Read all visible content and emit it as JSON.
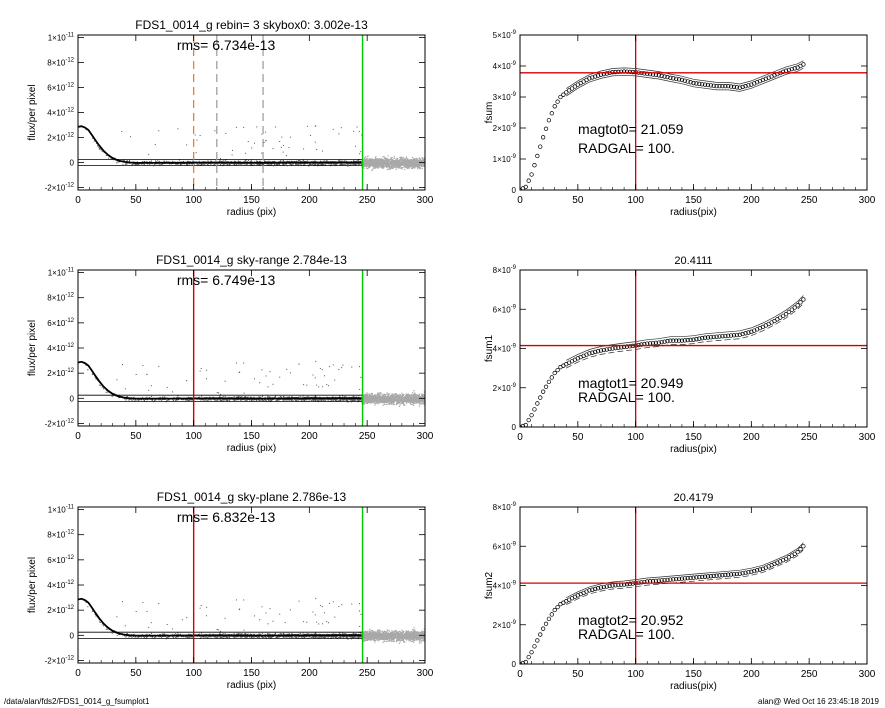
{
  "footer": {
    "left": "/data/alan/fds2/FDS1_0014_g_fsumplot1",
    "right": "alan@  Wed Oct 16 23:45:18 2019"
  },
  "colors": {
    "axis": "#000000",
    "data_points": "#555555",
    "noise_points": "#a8a8a8",
    "green_line": "#00c800",
    "red_line": "#d40000",
    "orange_line": "#f07800",
    "gray_dashed": "#999999"
  },
  "chart_data": [
    {
      "type": "scatter",
      "title": "FDS1_0014_g rebin= 3    skybox0:  3.002e-13",
      "annotation": "rms= 6.734e-13",
      "xlabel": "radius (pix)",
      "ylabel": "flux/per pixel",
      "xlim": [
        0,
        300
      ],
      "ylim": [
        -2.2e-12,
        1.02e-11
      ],
      "xticks": [
        0,
        50,
        100,
        150,
        200,
        250,
        300
      ],
      "yticks": [
        {
          "v": 1e-11,
          "m": "1×10",
          "e": "-11"
        },
        {
          "v": 8e-12,
          "m": "8×10",
          "e": "-12"
        },
        {
          "v": 6e-12,
          "m": "6×10",
          "e": "-12"
        },
        {
          "v": 4e-12,
          "m": "4×10",
          "e": "-12"
        },
        {
          "v": 2e-12,
          "m": "2×10",
          "e": "-12"
        },
        {
          "v": 0,
          "m": "0",
          "e": ""
        },
        {
          "v": -2e-12,
          "m": "-2×10",
          "e": "-12"
        }
      ],
      "vlines": [
        {
          "x": 100,
          "color": "orange",
          "dash": true
        },
        {
          "x": 120,
          "color": "gray",
          "dash": true
        },
        {
          "x": 160,
          "color": "gray",
          "dash": true
        },
        {
          "x": 246,
          "color": "green",
          "dash": false
        }
      ],
      "hlines": [
        2.5e-13,
        -2.5e-13
      ],
      "profile": {
        "x": [
          0,
          3,
          6,
          9,
          12,
          15,
          18,
          22,
          26,
          30,
          35,
          40,
          45,
          50,
          60,
          80,
          120,
          160,
          200,
          245
        ],
        "y": [
          2.85e-12,
          2.9e-12,
          2.8e-12,
          2.6e-12,
          2.2e-12,
          1.8e-12,
          1.4e-12,
          9.5e-13,
          6e-13,
          3.5e-13,
          1.5e-13,
          5e-14,
          0,
          -2e-14,
          -3e-14,
          -2e-14,
          0,
          -2e-14,
          0,
          1e-14
        ]
      }
    },
    {
      "type": "scatter",
      "title": "FDS1_0014_g sky-range  2.784e-13",
      "annotation": "rms= 6.749e-13",
      "xlabel": "radius (pix)",
      "ylabel": "flux/per pixel",
      "xlim": [
        0,
        300
      ],
      "ylim": [
        -2.2e-12,
        1.02e-11
      ],
      "xticks": [
        0,
        50,
        100,
        150,
        200,
        250,
        300
      ],
      "yticks": [
        {
          "v": 1e-11,
          "m": "1×10",
          "e": "-11"
        },
        {
          "v": 8e-12,
          "m": "8×10",
          "e": "-12"
        },
        {
          "v": 6e-12,
          "m": "6×10",
          "e": "-12"
        },
        {
          "v": 4e-12,
          "m": "4×10",
          "e": "-12"
        },
        {
          "v": 2e-12,
          "m": "2×10",
          "e": "-12"
        },
        {
          "v": 0,
          "m": "0",
          "e": ""
        },
        {
          "v": -2e-12,
          "m": "-2×10",
          "e": "-12"
        }
      ],
      "vlines": [
        {
          "x": 100,
          "color": "red",
          "dash": false
        },
        {
          "x": 246,
          "color": "green",
          "dash": false
        }
      ],
      "hlines": [
        2.5e-13,
        -2.5e-13
      ],
      "profile": {
        "x": [
          0,
          3,
          6,
          9,
          12,
          15,
          18,
          22,
          26,
          30,
          35,
          40,
          45,
          50,
          60,
          80,
          120,
          160,
          200,
          245
        ],
        "y": [
          2.85e-12,
          2.9e-12,
          2.8e-12,
          2.6e-12,
          2.2e-12,
          1.8e-12,
          1.4e-12,
          9.5e-13,
          6e-13,
          3.5e-13,
          1.5e-13,
          5e-14,
          0,
          -2e-14,
          -3e-14,
          -2e-14,
          0,
          -2e-14,
          0,
          1e-14
        ]
      }
    },
    {
      "type": "scatter",
      "title": "FDS1_0014_g sky-plane  2.786e-13",
      "annotation": "rms= 6.832e-13",
      "xlabel": "radius (pix)",
      "ylabel": "flux/per pixel",
      "xlim": [
        0,
        300
      ],
      "ylim": [
        -2.2e-12,
        1.02e-11
      ],
      "xticks": [
        0,
        50,
        100,
        150,
        200,
        250,
        300
      ],
      "yticks": [
        {
          "v": 1e-11,
          "m": "1×10",
          "e": "-11"
        },
        {
          "v": 8e-12,
          "m": "8×10",
          "e": "-12"
        },
        {
          "v": 6e-12,
          "m": "6×10",
          "e": "-12"
        },
        {
          "v": 4e-12,
          "m": "4×10",
          "e": "-12"
        },
        {
          "v": 2e-12,
          "m": "2×10",
          "e": "-12"
        },
        {
          "v": 0,
          "m": "0",
          "e": ""
        },
        {
          "v": -2e-12,
          "m": "-2×10",
          "e": "-12"
        }
      ],
      "vlines": [
        {
          "x": 100,
          "color": "red",
          "dash": false
        },
        {
          "x": 246,
          "color": "green",
          "dash": false
        }
      ],
      "hlines": [
        2.5e-13,
        -2.5e-13
      ],
      "profile": {
        "x": [
          0,
          3,
          6,
          9,
          12,
          15,
          18,
          22,
          26,
          30,
          35,
          40,
          45,
          50,
          60,
          80,
          120,
          160,
          200,
          245
        ],
        "y": [
          2.85e-12,
          2.9e-12,
          2.8e-12,
          2.6e-12,
          2.2e-12,
          1.8e-12,
          1.4e-12,
          9.5e-13,
          6e-13,
          3.5e-13,
          1.5e-13,
          5e-14,
          0,
          -2e-14,
          -3e-14,
          -2e-14,
          0,
          -2e-14,
          0,
          1e-14
        ]
      }
    },
    {
      "type": "line",
      "title": "",
      "xlabel": "radius(pix)",
      "ylabel": "fsum",
      "xlim": [
        0,
        300
      ],
      "ylim": [
        0,
        5e-09
      ],
      "xticks": [
        0,
        50,
        100,
        150,
        200,
        250,
        300
      ],
      "yticks": [
        {
          "v": 0,
          "m": "0",
          "e": ""
        },
        {
          "v": 1e-09,
          "m": "1×10",
          "e": "-9"
        },
        {
          "v": 2e-09,
          "m": "2×10",
          "e": "-9"
        },
        {
          "v": 3e-09,
          "m": "3×10",
          "e": "-9"
        },
        {
          "v": 4e-09,
          "m": "4×10",
          "e": "-9"
        },
        {
          "v": 5e-09,
          "m": "5×10",
          "e": "-9"
        }
      ],
      "annotations": [
        "magtot0=  21.059",
        "RADGAL=    100."
      ],
      "hline": 3.78e-09,
      "vline": 100,
      "series": [
        {
          "x": [
            0,
            5,
            10,
            15,
            20,
            25,
            30,
            35,
            40,
            50,
            60,
            70,
            80,
            90,
            100,
            110,
            120,
            130,
            140,
            150,
            160,
            170,
            180,
            190,
            200,
            210,
            220,
            230,
            240,
            245
          ],
          "y": [
            0,
            1e-10,
            5e-10,
            1.1e-09,
            1.7e-09,
            2.25e-09,
            2.7e-09,
            3e-09,
            3.15e-09,
            3.4e-09,
            3.6e-09,
            3.72e-09,
            3.8e-09,
            3.82e-09,
            3.8e-09,
            3.75e-09,
            3.7e-09,
            3.62e-09,
            3.55e-09,
            3.45e-09,
            3.4e-09,
            3.35e-09,
            3.35e-09,
            3.3e-09,
            3.4e-09,
            3.55e-09,
            3.7e-09,
            3.85e-09,
            3.95e-09,
            4.05e-09
          ]
        }
      ],
      "envelope": 1.2e-10
    },
    {
      "type": "line",
      "title": "20.4111",
      "xlabel": "radius(pix)",
      "ylabel": "fsum1",
      "xlim": [
        0,
        300
      ],
      "ylim": [
        0,
        8e-09
      ],
      "xticks": [
        0,
        50,
        100,
        150,
        200,
        250,
        300
      ],
      "yticks": [
        {
          "v": 0,
          "m": "0",
          "e": ""
        },
        {
          "v": 2e-09,
          "m": "2×10",
          "e": "-9"
        },
        {
          "v": 4e-09,
          "m": "4×10",
          "e": "-9"
        },
        {
          "v": 6e-09,
          "m": "6×10",
          "e": "-9"
        },
        {
          "v": 8e-09,
          "m": "8×10",
          "e": "-9"
        }
      ],
      "annotations": [
        "magtot1=  20.949",
        "RADGAL=    100."
      ],
      "hline": 4.15e-09,
      "vline": 100,
      "series": [
        {
          "x": [
            0,
            5,
            10,
            15,
            20,
            25,
            30,
            35,
            40,
            50,
            60,
            70,
            80,
            90,
            100,
            110,
            120,
            130,
            140,
            150,
            160,
            170,
            180,
            190,
            200,
            210,
            220,
            230,
            240,
            245
          ],
          "y": [
            0,
            1e-10,
            6e-10,
            1.2e-09,
            1.8e-09,
            2.3e-09,
            2.75e-09,
            3.05e-09,
            3.2e-09,
            3.5e-09,
            3.75e-09,
            3.9e-09,
            4e-09,
            4.08e-09,
            4.15e-09,
            4.25e-09,
            4.3e-09,
            4.4e-09,
            4.4e-09,
            4.45e-09,
            4.55e-09,
            4.6e-09,
            4.65e-09,
            4.7e-09,
            4.85e-09,
            5.1e-09,
            5.4e-09,
            5.75e-09,
            6.2e-09,
            6.5e-09
          ]
        }
      ],
      "envelope": 2e-10
    },
    {
      "type": "line",
      "title": "20.4179",
      "xlabel": "radius(pix)",
      "ylabel": "fsum2",
      "xlim": [
        0,
        300
      ],
      "ylim": [
        0,
        8e-09
      ],
      "xticks": [
        0,
        50,
        100,
        150,
        200,
        250,
        300
      ],
      "yticks": [
        {
          "v": 0,
          "m": "0",
          "e": ""
        },
        {
          "v": 2e-09,
          "m": "2×10",
          "e": "-9"
        },
        {
          "v": 4e-09,
          "m": "4×10",
          "e": "-9"
        },
        {
          "v": 6e-09,
          "m": "6×10",
          "e": "-9"
        },
        {
          "v": 8e-09,
          "m": "8×10",
          "e": "-9"
        }
      ],
      "annotations": [
        "magtot2=  20.952",
        "RADGAL=    100."
      ],
      "hline": 4.12e-09,
      "vline": 100,
      "series": [
        {
          "x": [
            0,
            5,
            10,
            15,
            20,
            25,
            30,
            35,
            40,
            50,
            60,
            70,
            80,
            90,
            100,
            110,
            120,
            130,
            140,
            150,
            160,
            170,
            180,
            190,
            200,
            210,
            220,
            230,
            240,
            245
          ],
          "y": [
            0,
            1e-10,
            6e-10,
            1.2e-09,
            1.8e-09,
            2.3e-09,
            2.75e-09,
            3.05e-09,
            3.2e-09,
            3.5e-09,
            3.75e-09,
            3.9e-09,
            4e-09,
            4.05e-09,
            4.12e-09,
            4.2e-09,
            4.25e-09,
            4.3e-09,
            4.35e-09,
            4.4e-09,
            4.45e-09,
            4.5e-09,
            4.55e-09,
            4.6e-09,
            4.7e-09,
            4.85e-09,
            5.1e-09,
            5.35e-09,
            5.7e-09,
            6e-09
          ]
        }
      ],
      "envelope": 1.8e-10
    }
  ]
}
